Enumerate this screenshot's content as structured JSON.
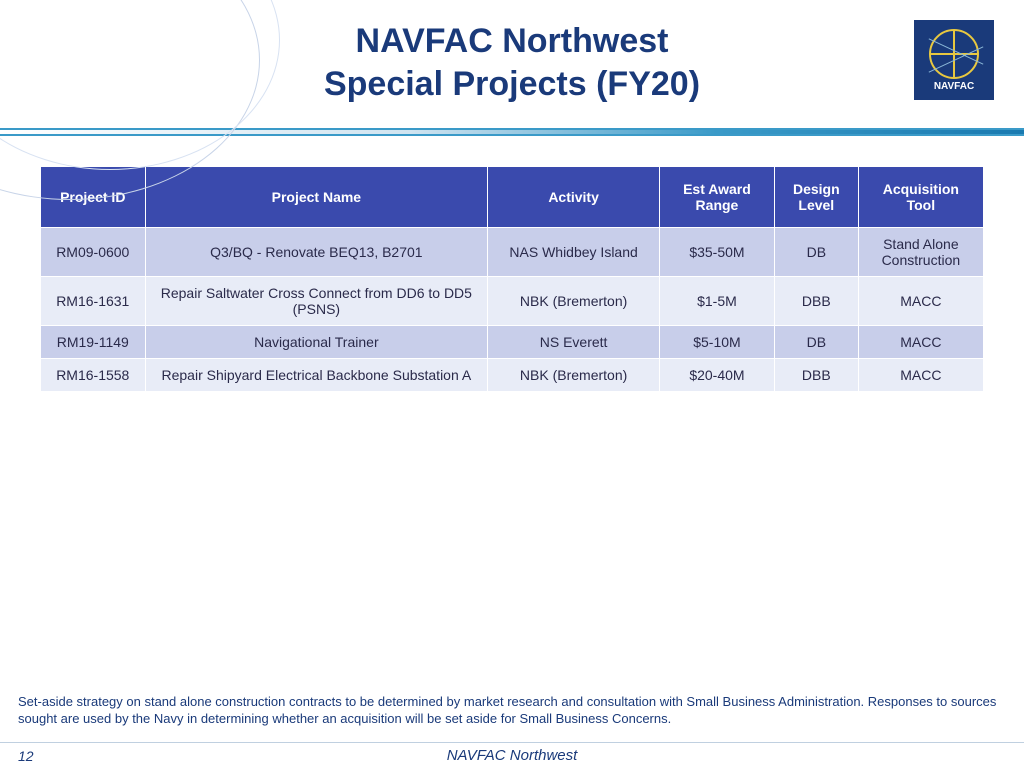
{
  "header": {
    "title_line1": "NAVFAC Northwest",
    "title_line2": "Special Projects (FY20)",
    "logo_text": "NAVFAC"
  },
  "table": {
    "columns": [
      "Project ID",
      "Project Name",
      "Activity",
      "Est Award Range",
      "Design Level",
      "Acquisition Tool"
    ],
    "rows": [
      [
        "RM09-0600",
        "Q3/BQ - Renovate BEQ13,  B2701",
        "NAS Whidbey Island",
        "$35-50M",
        "DB",
        "Stand Alone Construction"
      ],
      [
        "RM16-1631",
        "Repair Saltwater Cross Connect from DD6 to DD5 (PSNS)",
        "NBK (Bremerton)",
        "$1-5M",
        "DBB",
        "MACC"
      ],
      [
        "RM19-1149",
        "Navigational Trainer",
        "NS Everett",
        "$5-10M",
        "DB",
        "MACC"
      ],
      [
        "RM16-1558",
        "Repair Shipyard Electrical Backbone Substation A",
        "NBK (Bremerton)",
        "$20-40M",
        "DBB",
        "MACC"
      ]
    ],
    "header_bg": "#3a4aad",
    "header_fg": "#ffffff",
    "row_odd_bg": "#c8ceea",
    "row_even_bg": "#e8ecf7",
    "cell_fg": "#2a2a4a"
  },
  "footnote": "Set-aside strategy on stand alone construction contracts to be determined by market research and consultation with Small Business Administration. Responses to sources sought are used by the Navy in determining whether an acquisition will be set aside for Small Business Concerns.",
  "footer": {
    "page_number": "12",
    "org": "NAVFAC Northwest"
  },
  "colors": {
    "title": "#1a3a7a",
    "divider": "#3a9ac8"
  }
}
